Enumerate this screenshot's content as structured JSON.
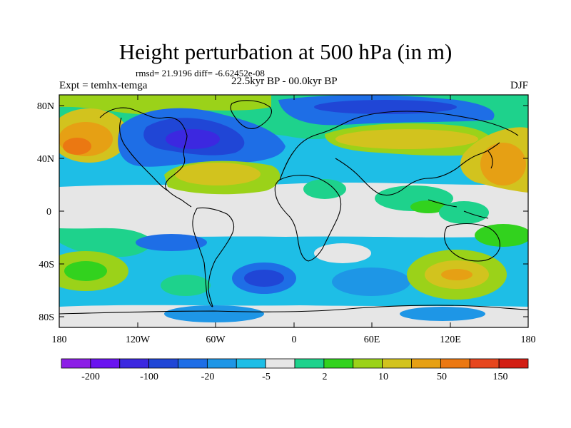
{
  "title": "Height perturbation at 500 hPa (in m)",
  "stats": "rmsd= 21.9196 diff= -6.62452e-08",
  "experiment": "Expt = temhx-temga",
  "period": "22.5kyr BP - 00.0kyr BP",
  "season": "DJF",
  "lat_ticks": [
    "80N",
    "40N",
    "0",
    "40S",
    "80S"
  ],
  "lon_ticks": [
    "180",
    "120W",
    "60W",
    "0",
    "60E",
    "120E",
    "180"
  ],
  "colorbar": {
    "colors": [
      "#8c1ee6",
      "#6a14f0",
      "#3c28e0",
      "#2046d6",
      "#1e6ee6",
      "#1e96e6",
      "#1ebee6",
      "#e6e6e6",
      "#1ed28c",
      "#32d21e",
      "#9bd219",
      "#d2c31e",
      "#e6a014",
      "#eb7812",
      "#e6461e",
      "#d21e14"
    ],
    "labels": [
      "-200",
      "-100",
      "-20",
      "-5",
      "2",
      "10",
      "50",
      "150"
    ]
  }
}
